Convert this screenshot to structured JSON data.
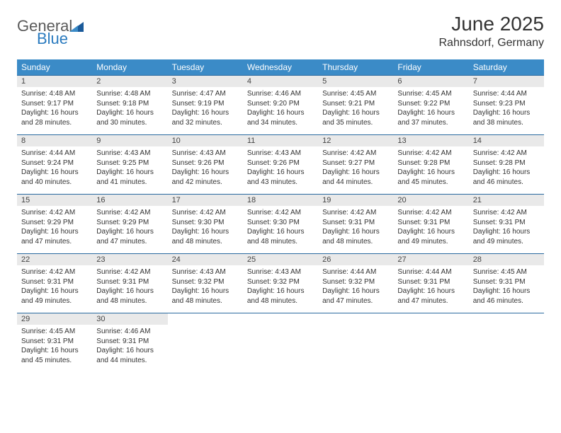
{
  "logo": {
    "text_general": "General",
    "text_blue": "Blue"
  },
  "header": {
    "month_title": "June 2025",
    "location": "Rahnsdorf, Germany"
  },
  "colors": {
    "header_bg": "#3b8bc7",
    "header_text": "#ffffff",
    "daynum_bg": "#e9e9e9",
    "cell_border": "#2a6aa0",
    "body_text": "#333333",
    "logo_gray": "#5a5a5a",
    "logo_blue": "#2b7bbf"
  },
  "calendar": {
    "days_of_week": [
      "Sunday",
      "Monday",
      "Tuesday",
      "Wednesday",
      "Thursday",
      "Friday",
      "Saturday"
    ],
    "weeks": [
      [
        {
          "n": "1",
          "sunrise": "Sunrise: 4:48 AM",
          "sunset": "Sunset: 9:17 PM",
          "daylight": "Daylight: 16 hours and 28 minutes."
        },
        {
          "n": "2",
          "sunrise": "Sunrise: 4:48 AM",
          "sunset": "Sunset: 9:18 PM",
          "daylight": "Daylight: 16 hours and 30 minutes."
        },
        {
          "n": "3",
          "sunrise": "Sunrise: 4:47 AM",
          "sunset": "Sunset: 9:19 PM",
          "daylight": "Daylight: 16 hours and 32 minutes."
        },
        {
          "n": "4",
          "sunrise": "Sunrise: 4:46 AM",
          "sunset": "Sunset: 9:20 PM",
          "daylight": "Daylight: 16 hours and 34 minutes."
        },
        {
          "n": "5",
          "sunrise": "Sunrise: 4:45 AM",
          "sunset": "Sunset: 9:21 PM",
          "daylight": "Daylight: 16 hours and 35 minutes."
        },
        {
          "n": "6",
          "sunrise": "Sunrise: 4:45 AM",
          "sunset": "Sunset: 9:22 PM",
          "daylight": "Daylight: 16 hours and 37 minutes."
        },
        {
          "n": "7",
          "sunrise": "Sunrise: 4:44 AM",
          "sunset": "Sunset: 9:23 PM",
          "daylight": "Daylight: 16 hours and 38 minutes."
        }
      ],
      [
        {
          "n": "8",
          "sunrise": "Sunrise: 4:44 AM",
          "sunset": "Sunset: 9:24 PM",
          "daylight": "Daylight: 16 hours and 40 minutes."
        },
        {
          "n": "9",
          "sunrise": "Sunrise: 4:43 AM",
          "sunset": "Sunset: 9:25 PM",
          "daylight": "Daylight: 16 hours and 41 minutes."
        },
        {
          "n": "10",
          "sunrise": "Sunrise: 4:43 AM",
          "sunset": "Sunset: 9:26 PM",
          "daylight": "Daylight: 16 hours and 42 minutes."
        },
        {
          "n": "11",
          "sunrise": "Sunrise: 4:43 AM",
          "sunset": "Sunset: 9:26 PM",
          "daylight": "Daylight: 16 hours and 43 minutes."
        },
        {
          "n": "12",
          "sunrise": "Sunrise: 4:42 AM",
          "sunset": "Sunset: 9:27 PM",
          "daylight": "Daylight: 16 hours and 44 minutes."
        },
        {
          "n": "13",
          "sunrise": "Sunrise: 4:42 AM",
          "sunset": "Sunset: 9:28 PM",
          "daylight": "Daylight: 16 hours and 45 minutes."
        },
        {
          "n": "14",
          "sunrise": "Sunrise: 4:42 AM",
          "sunset": "Sunset: 9:28 PM",
          "daylight": "Daylight: 16 hours and 46 minutes."
        }
      ],
      [
        {
          "n": "15",
          "sunrise": "Sunrise: 4:42 AM",
          "sunset": "Sunset: 9:29 PM",
          "daylight": "Daylight: 16 hours and 47 minutes."
        },
        {
          "n": "16",
          "sunrise": "Sunrise: 4:42 AM",
          "sunset": "Sunset: 9:29 PM",
          "daylight": "Daylight: 16 hours and 47 minutes."
        },
        {
          "n": "17",
          "sunrise": "Sunrise: 4:42 AM",
          "sunset": "Sunset: 9:30 PM",
          "daylight": "Daylight: 16 hours and 48 minutes."
        },
        {
          "n": "18",
          "sunrise": "Sunrise: 4:42 AM",
          "sunset": "Sunset: 9:30 PM",
          "daylight": "Daylight: 16 hours and 48 minutes."
        },
        {
          "n": "19",
          "sunrise": "Sunrise: 4:42 AM",
          "sunset": "Sunset: 9:31 PM",
          "daylight": "Daylight: 16 hours and 48 minutes."
        },
        {
          "n": "20",
          "sunrise": "Sunrise: 4:42 AM",
          "sunset": "Sunset: 9:31 PM",
          "daylight": "Daylight: 16 hours and 49 minutes."
        },
        {
          "n": "21",
          "sunrise": "Sunrise: 4:42 AM",
          "sunset": "Sunset: 9:31 PM",
          "daylight": "Daylight: 16 hours and 49 minutes."
        }
      ],
      [
        {
          "n": "22",
          "sunrise": "Sunrise: 4:42 AM",
          "sunset": "Sunset: 9:31 PM",
          "daylight": "Daylight: 16 hours and 49 minutes."
        },
        {
          "n": "23",
          "sunrise": "Sunrise: 4:42 AM",
          "sunset": "Sunset: 9:31 PM",
          "daylight": "Daylight: 16 hours and 48 minutes."
        },
        {
          "n": "24",
          "sunrise": "Sunrise: 4:43 AM",
          "sunset": "Sunset: 9:32 PM",
          "daylight": "Daylight: 16 hours and 48 minutes."
        },
        {
          "n": "25",
          "sunrise": "Sunrise: 4:43 AM",
          "sunset": "Sunset: 9:32 PM",
          "daylight": "Daylight: 16 hours and 48 minutes."
        },
        {
          "n": "26",
          "sunrise": "Sunrise: 4:44 AM",
          "sunset": "Sunset: 9:32 PM",
          "daylight": "Daylight: 16 hours and 47 minutes."
        },
        {
          "n": "27",
          "sunrise": "Sunrise: 4:44 AM",
          "sunset": "Sunset: 9:31 PM",
          "daylight": "Daylight: 16 hours and 47 minutes."
        },
        {
          "n": "28",
          "sunrise": "Sunrise: 4:45 AM",
          "sunset": "Sunset: 9:31 PM",
          "daylight": "Daylight: 16 hours and 46 minutes."
        }
      ],
      [
        {
          "n": "29",
          "sunrise": "Sunrise: 4:45 AM",
          "sunset": "Sunset: 9:31 PM",
          "daylight": "Daylight: 16 hours and 45 minutes."
        },
        {
          "n": "30",
          "sunrise": "Sunrise: 4:46 AM",
          "sunset": "Sunset: 9:31 PM",
          "daylight": "Daylight: 16 hours and 44 minutes."
        },
        null,
        null,
        null,
        null,
        null
      ]
    ]
  }
}
